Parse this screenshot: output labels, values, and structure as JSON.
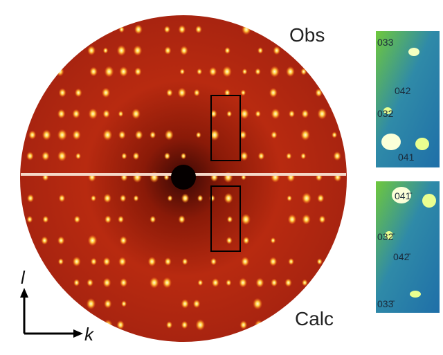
{
  "labels": {
    "obs": "Obs",
    "calc": "Calc"
  },
  "axes": {
    "vertical": "l",
    "horizontal": "k"
  },
  "insets": [
    {
      "labels": [
        "033",
        "042",
        "032",
        "041"
      ]
    },
    {
      "labels": [
        "041̄",
        "032̄",
        "042̄",
        "033̄"
      ]
    }
  ]
}
